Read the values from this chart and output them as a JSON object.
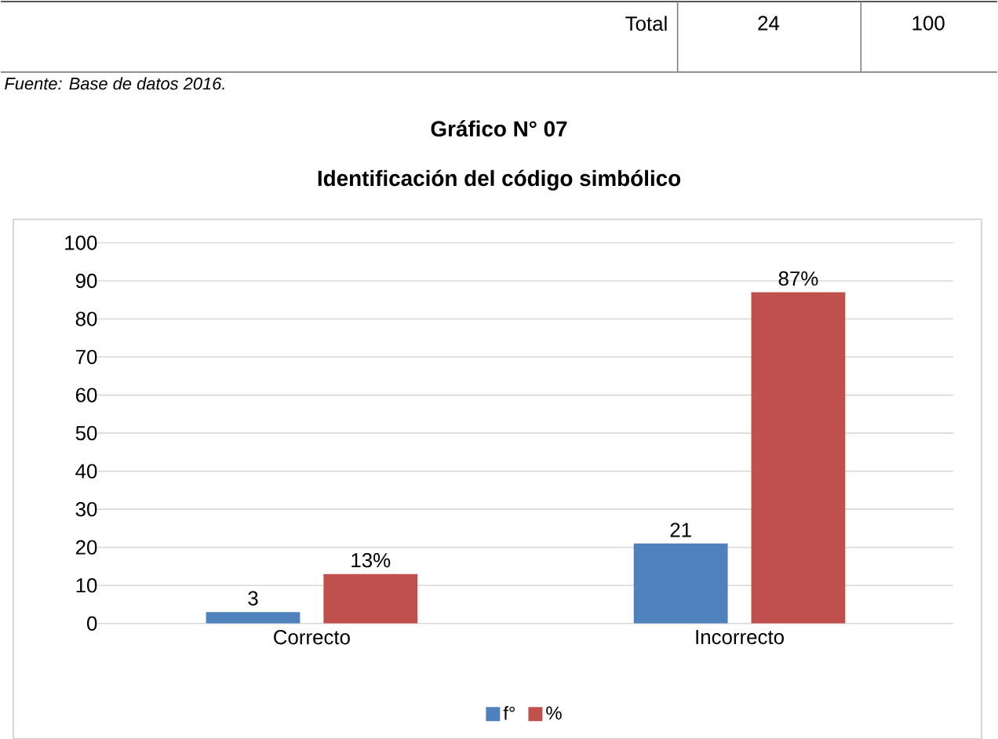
{
  "chart_data": {
    "type": "bar",
    "title": "Gráfico N° 07",
    "subtitle": "Identificación del código simbólico",
    "annotations": [
      "Total",
      "24",
      "100",
      "Fuente: Base de datos 2016."
    ],
    "categories": [
      "Correcto",
      "Incorrecto"
    ],
    "series": [
      {
        "name": "f°",
        "color": "#4f81bd",
        "values": [
          3,
          21
        ],
        "value_labels": [
          "3",
          "21"
        ]
      },
      {
        "name": "%",
        "color": "#c0504d",
        "values": [
          13,
          87
        ],
        "value_labels": [
          "13%",
          "87%"
        ]
      }
    ],
    "ylim": [
      0,
      100
    ],
    "yticks": [
      0,
      10,
      20,
      30,
      40,
      50,
      60,
      70,
      80,
      90,
      100
    ],
    "grid": "y",
    "legend": "bottom"
  }
}
